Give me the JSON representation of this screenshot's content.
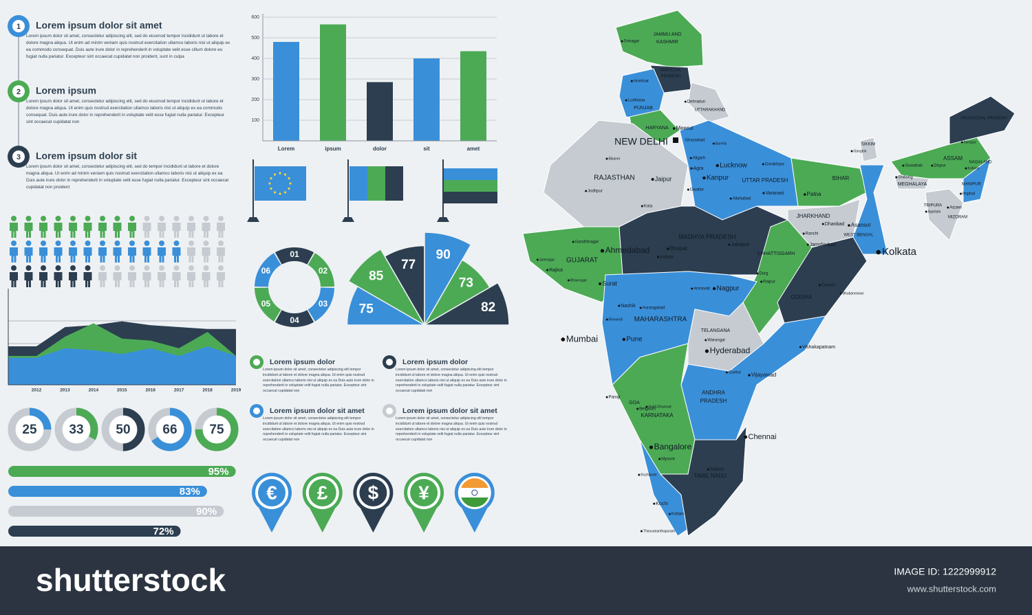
{
  "steps": [
    {
      "number": "1",
      "title": "Lorem ipsum dolor sit amet",
      "body": "Lorem ipsum dolor sit amet, consectetur adipiscing elit, sed do eiusmod tempor incididunt ut labore et dolore magna aliqua. Ut enim ad minim veniam quis nostrud exercitation ullamco laboris nisi ut aliquip ex ea commodo consequat. Duis aute irure dolor in reprehenderit in voluptate velit esse cillum dolore eu fugiat nulla pariatur. Excepteur sint occaecat cupidatat non proident, sunt in culpa"
    },
    {
      "number": "2",
      "title": "Lorem ipsum",
      "body": "Lorem ipsum dolor sit amet, consectetur adipiscing elit, sed do eiusmod tempor incididunt ut labore et dolore magna aliqua. Ut enim quis nostrud exercitation ullamco laboris nisi ut aliquip ex ea commodo consequat. Duis aute irure dolor in reprehenderit in voluptate velit esse fugiat nulla pariatur. Excepteur sint occaecat cupidatat non"
    },
    {
      "number": "3",
      "title": "Lorem ipsum dolor sit",
      "body": "Lorem ipsum dolor sit amet, consectetur adipiscing elit, sed do tempor incididunt ut labore et dolore magna aliqua. Ut enim ad minim veniam quis nostrud exercitation ullamco laboris nisi ut aliquip ex ea Duis aute irure dolor in reprehenderit in voluptate velit esse fugiat nulla pariatur. Excepteur sint occaecat cupidatat non proident"
    }
  ],
  "chart_data": [
    {
      "type": "bar",
      "categories": [
        "Lorem",
        "ipsum",
        "dolor",
        "sit",
        "amet"
      ],
      "values": [
        480,
        565,
        285,
        400,
        435
      ],
      "colors": [
        "#3a8fd9",
        "#4caa55",
        "#2c3e50",
        "#3a8fd9",
        "#4caa55"
      ],
      "ylim": [
        0,
        600
      ],
      "yticks": [
        100,
        200,
        300,
        400,
        500,
        600
      ],
      "grid": true
    },
    {
      "type": "pictogram",
      "total": 15,
      "values": [
        9,
        12,
        6
      ],
      "colors": [
        "#4caa55",
        "#3a8fd9",
        "#2c3e50"
      ],
      "empty_color": "#c5cbd1"
    },
    {
      "type": "area",
      "categories": [
        "2012",
        "2013",
        "2014",
        "2015",
        "2016",
        "2017",
        "2018",
        "2019"
      ],
      "ylim": [
        0,
        100
      ],
      "series": [
        {
          "color": "#2c3e50",
          "values": [
            40,
            60,
            62,
            66,
            62,
            60,
            58,
            58
          ]
        },
        {
          "color": "#4caa55",
          "values": [
            30,
            50,
            64,
            48,
            46,
            38,
            55,
            30
          ]
        },
        {
          "color": "#3a8fd9",
          "values": [
            28,
            38,
            36,
            32,
            38,
            30,
            40,
            30
          ]
        }
      ]
    },
    {
      "type": "ring",
      "labels": [
        "01",
        "02",
        "03",
        "04",
        "05",
        "06"
      ],
      "colors": [
        "#2c3e50",
        "#4caa55",
        "#3a8fd9",
        "#2c3e50",
        "#4caa55",
        "#3a8fd9"
      ]
    },
    {
      "type": "fan",
      "values": [
        75,
        85,
        77,
        90,
        73,
        82
      ],
      "colors": [
        "#3a8fd9",
        "#4caa55",
        "#2c3e50",
        "#3a8fd9",
        "#4caa55",
        "#2c3e50"
      ],
      "ylim": [
        0,
        100
      ]
    },
    {
      "type": "donut",
      "values": [
        25,
        33,
        50,
        66,
        75
      ],
      "colors": [
        "#3a8fd9",
        "#4caa55",
        "#2c3e50",
        "#3a8fd9",
        "#4caa55"
      ],
      "ylim": [
        0,
        100
      ]
    },
    {
      "type": "progress",
      "values": [
        95,
        83,
        90,
        72
      ],
      "value_labels": [
        "95%",
        "83%",
        "90%",
        "72%"
      ],
      "colors": [
        "#4caa55",
        "#3a8fd9",
        "#c5cbd1",
        "#2c3e50"
      ],
      "xlim": [
        0,
        100
      ]
    }
  ],
  "text_blocks": [
    {
      "title": "Lorem ipsum dolor",
      "body": "Lorem ipsum dolor sit amet, consectetur adipiscing elit tempor incididunt ut labore et dolore magna aliqua. Ut enim quis nostrud exercitation ullamco laboris nisi ut aliquip ex ea Duis aute irure dolor in reprehenderit in voluptate velit fugiat nulla pariatur. Excepteur sint occaecat cupidatat non"
    },
    {
      "title": "Lorem ipsum dolor",
      "body": "Lorem ipsum dolor sit amet, consectetur adipiscing elit tempor incididunt ut labore et dolore magna aliqua. Ut enim quis nostrud exercitation ullamco laboris nisi ut aliquip ex ea Duis aute irure dolor in reprehenderit in voluptate velit fugiat nulla pariatur. Excepteur sint occaecat cupidatat non"
    },
    {
      "title": "Lorem ipsum dolor sit amet",
      "body": "Lorem ipsum dolor sit amet, consectetur adipiscing elit tempor incididunt ut labore et dolore magna aliqua. Ut enim quis nostrud exercitation ullamco laboris nisi ut aliquip ex ea Duis aute irure dolor in reprehenderit in voluptate velit fugiat nulla pariatur. Excepteur sint occaecat cupidatat non"
    },
    {
      "title": "Lorem ipsum dolor sit amet",
      "body": "Lorem ipsum dolor sit amet, consectetur adipiscing elit tempor incididunt ut labore et dolore magna aliqua. Ut enim quis nostrud exercitation ullamco laboris nisi ut aliquip ex ea Duis aute irure dolor in reprehenderit in voluptate velit fugiat nulla pariatur. Excepteur sint occaecat cupidatat non"
    }
  ],
  "pins": {
    "symbols": [
      "€",
      "£",
      "$",
      "¥"
    ]
  },
  "map": {
    "labels": [
      "Srinagar",
      "JAMMU AND",
      "KASHMIR",
      "HIMACHAL",
      "PRADESH",
      "Amritsar",
      "Ludhiana",
      "PUNJAB",
      "Dehradun",
      "UTTARAKHAND",
      "HARYANA",
      "Meerut",
      "NEW DELHI",
      "Ghaziabad",
      "Bareilly",
      "Aligarh",
      "Agra",
      "Lucknow",
      "Gorakhpur",
      "Kanpur",
      "UTTAR PRADESH",
      "Varanasi",
      "Allahabad",
      "Gwalior",
      "BIHAR",
      "Patna",
      "RAJASTHAN",
      "Jaipur",
      "Jodhpur",
      "Bikaner",
      "Kota",
      "SIKKIM",
      "Gangtok",
      "ARUNACHAL PRADESH",
      "Itanagar",
      "ASSAM",
      "Guwahati",
      "Dispur",
      "NAGALAND",
      "Kohima",
      "Shillong",
      "MEGHALAYA",
      "MANIPUR",
      "Imphal",
      "TRIPURA",
      "Agartala",
      "Aizawl",
      "MIZORAM",
      "JHARKHAND",
      "Dhanbad",
      "Asansol",
      "Ranchi",
      "WEST BENGAL",
      "Jamshedpur",
      "Kolkata",
      "MADHYA PRADESH",
      "Jabalpur",
      "Bhopal",
      "Indore",
      "Gandhinagar",
      "Ahmedabad",
      "GUJARAT",
      "Jamnagar",
      "Rajkot",
      "Bhavnagar",
      "Surat",
      "CHHATTISGARH",
      "Durg",
      "Raipur",
      "ODISHA",
      "Cuttack",
      "Bhubaneswar",
      "Nagpur",
      "Amravati",
      "Nashik",
      "Aurangabad",
      "MAHARASHTRA",
      "Bhiwandi",
      "Mumbai",
      "Pune",
      "TELANGANA",
      "Warangal",
      "Hyderabad",
      "Vishakapatnam",
      "Guntur",
      "Vijayawad",
      "ANDHRA",
      "PRADESH",
      "Panaji",
      "GOA",
      "Belgaum",
      "Hubli-Dharwad",
      "KARNATAKA",
      "Chennai",
      "Bangalore",
      "Mysore",
      "Salem",
      "TAMIL NADU",
      "Kozhikode",
      "Kochi",
      "Kollam",
      "Thiruvananthapuram"
    ]
  },
  "footer": {
    "logo": "shutterstock",
    "image_id": "IMAGE ID: 1222999912",
    "url": "www.shutterstock.com"
  }
}
